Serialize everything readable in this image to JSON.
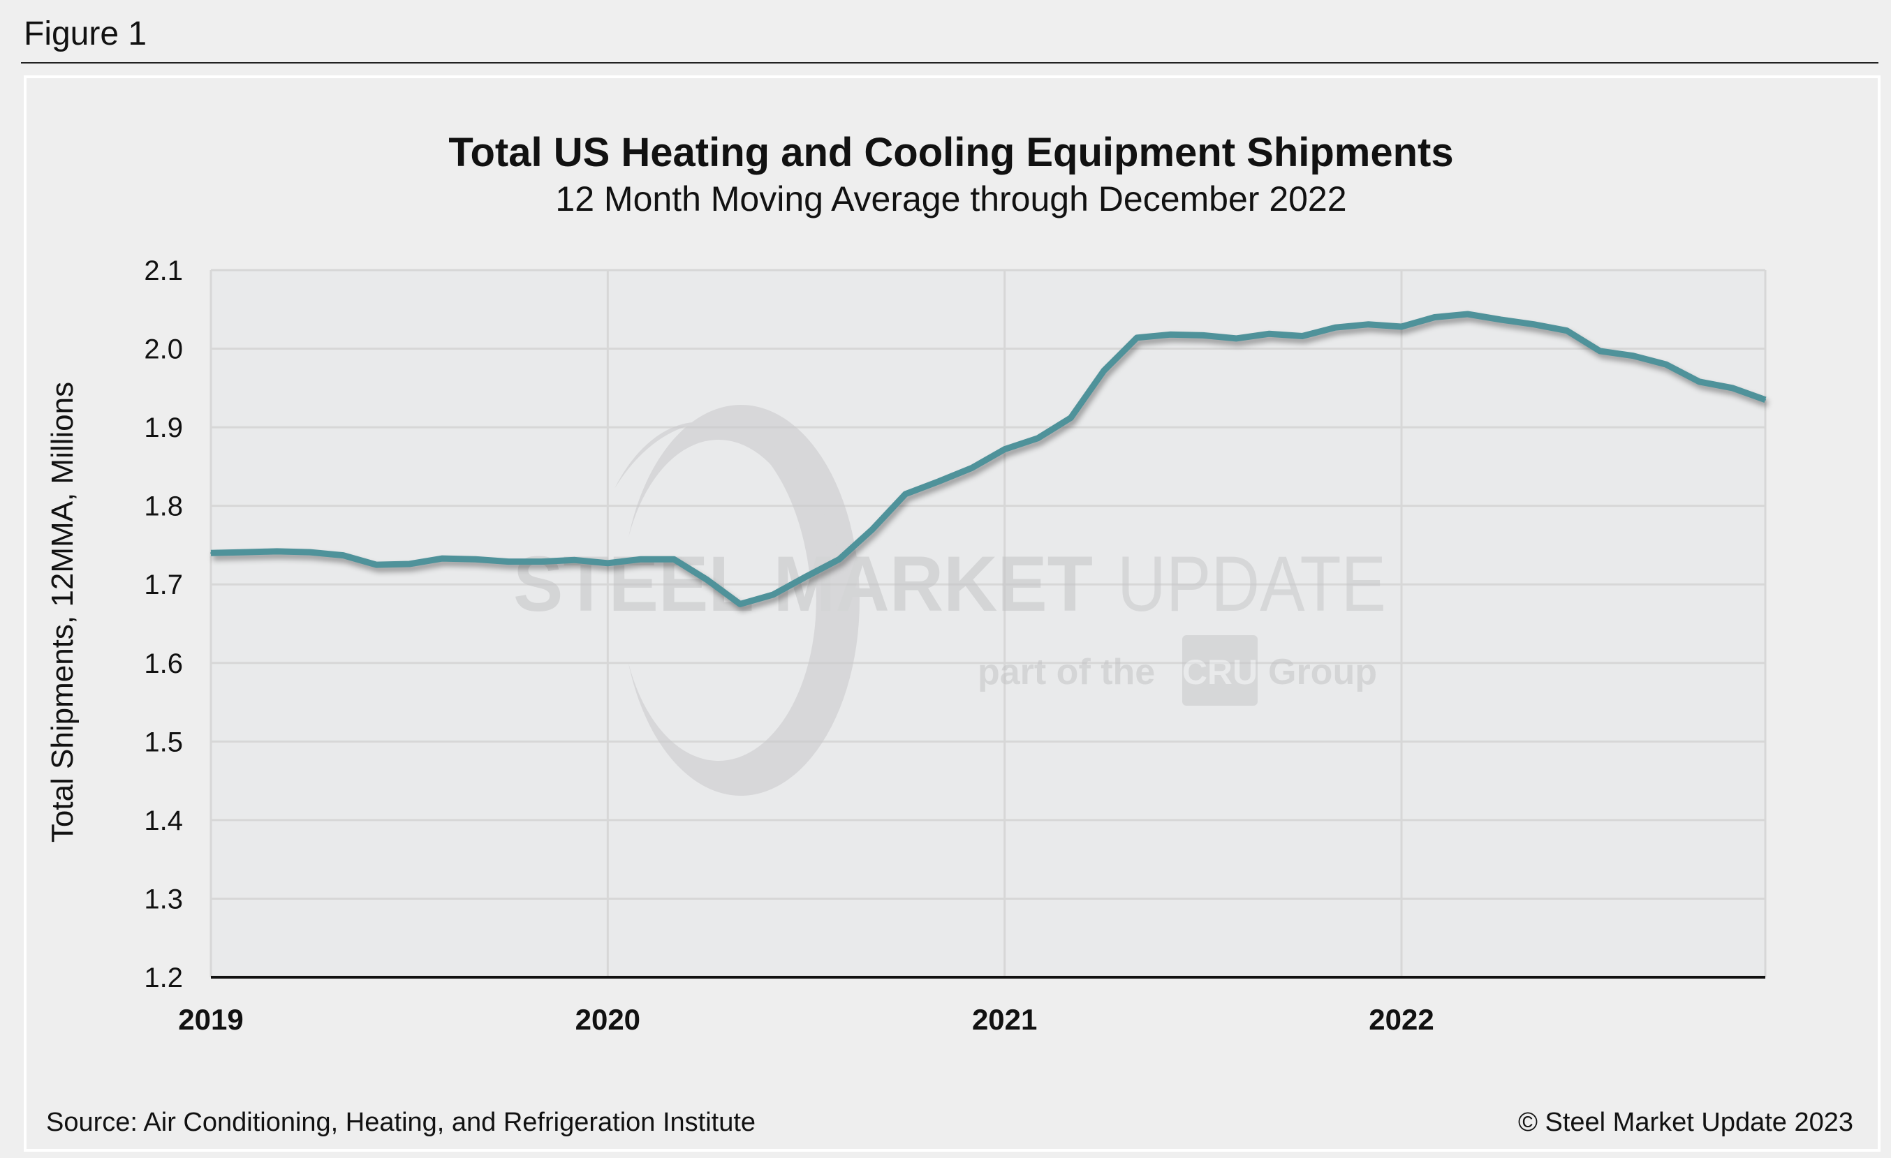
{
  "figure_label": "Figure 1",
  "source": "Source: Air Conditioning, Heating, and Refrigeration Institute",
  "copyright": "© Steel Market Update 2023",
  "watermark": {
    "brand_bold": "STEEL MARKET",
    "brand_light": "UPDATE",
    "sub_left": "part of the",
    "sub_logo": "CRU",
    "sub_right": "Group"
  },
  "colors": {
    "line": "#4f929a",
    "plot_bg": "#e9eaeb",
    "grid": "#d7d7d7",
    "page_bg": "#efefef"
  },
  "chart_data": {
    "type": "line",
    "title": "Total US Heating and Cooling Equipment Shipments",
    "subtitle": "12 Month Moving Average through December 2022",
    "xlabel": "",
    "ylabel": "Total Shipments, 12MMA, Millions",
    "ylim": [
      1.2,
      2.1
    ],
    "yticks": [
      "1.2",
      "1.3",
      "1.4",
      "1.5",
      "1.6",
      "1.7",
      "1.8",
      "1.9",
      "2.0",
      "2.1"
    ],
    "xticks": [
      "2019",
      "2020",
      "2021",
      "2022"
    ],
    "grid": true,
    "legend": "none",
    "x": [
      "2019-01",
      "2019-02",
      "2019-03",
      "2019-04",
      "2019-05",
      "2019-06",
      "2019-07",
      "2019-08",
      "2019-09",
      "2019-10",
      "2019-11",
      "2019-12",
      "2020-01",
      "2020-02",
      "2020-03",
      "2020-04",
      "2020-05",
      "2020-06",
      "2020-07",
      "2020-08",
      "2020-09",
      "2020-10",
      "2020-11",
      "2020-12",
      "2021-01",
      "2021-02",
      "2021-03",
      "2021-04",
      "2021-05",
      "2021-06",
      "2021-07",
      "2021-08",
      "2021-09",
      "2021-10",
      "2021-11",
      "2021-12",
      "2022-01",
      "2022-02",
      "2022-03",
      "2022-04",
      "2022-05",
      "2022-06",
      "2022-07",
      "2022-08",
      "2022-09",
      "2022-10",
      "2022-11",
      "2022-12"
    ],
    "values": [
      1.74,
      1.741,
      1.742,
      1.741,
      1.737,
      1.725,
      1.726,
      1.733,
      1.732,
      1.729,
      1.729,
      1.731,
      1.727,
      1.732,
      1.732,
      1.706,
      1.675,
      1.687,
      1.71,
      1.732,
      1.77,
      1.815,
      1.831,
      1.848,
      1.872,
      1.886,
      1.912,
      1.972,
      2.014,
      2.018,
      2.017,
      2.013,
      2.019,
      2.016,
      2.027,
      2.031,
      2.028,
      2.04,
      2.044,
      2.037,
      2.031,
      2.023,
      1.997,
      1.991,
      1.98,
      1.958,
      1.95,
      1.935
    ]
  }
}
